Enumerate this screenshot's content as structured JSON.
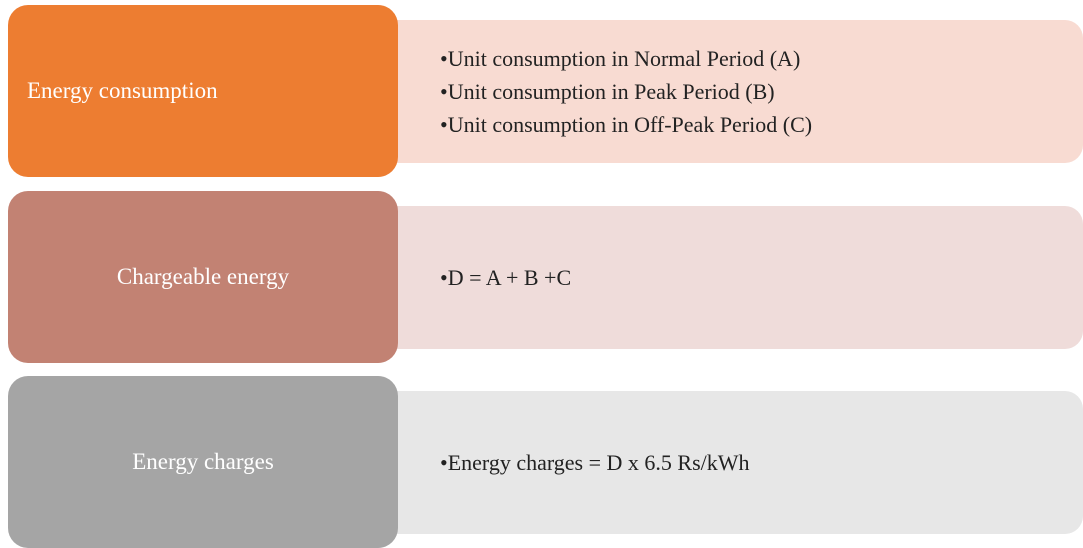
{
  "rows": [
    {
      "label": "Energy consumption",
      "items": [
        "•Unit consumption in Normal Period (A)",
        "•Unit consumption in Peak Period (B)",
        "•Unit consumption in Off-Peak Period (C)"
      ]
    },
    {
      "label": "Chargeable energy",
      "items": [
        "•D = A + B +C"
      ]
    },
    {
      "label": "Energy charges",
      "items": [
        "•Energy charges = D x 6.5 Rs/kWh"
      ]
    }
  ]
}
